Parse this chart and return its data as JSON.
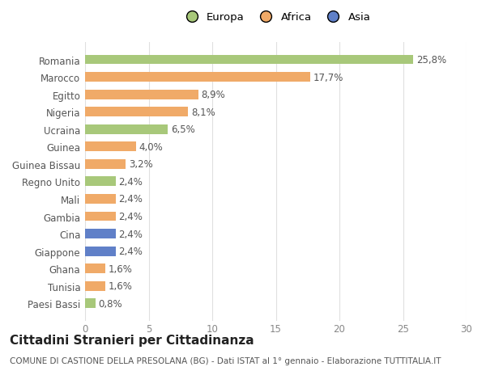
{
  "categories": [
    "Paesi Bassi",
    "Tunisia",
    "Ghana",
    "Giappone",
    "Cina",
    "Gambia",
    "Mali",
    "Regno Unito",
    "Guinea Bissau",
    "Guinea",
    "Ucraina",
    "Nigeria",
    "Egitto",
    "Marocco",
    "Romania"
  ],
  "values": [
    0.8,
    1.6,
    1.6,
    2.4,
    2.4,
    2.4,
    2.4,
    2.4,
    3.2,
    4.0,
    6.5,
    8.1,
    8.9,
    17.7,
    25.8
  ],
  "colors": [
    "#a8c87a",
    "#f0aa68",
    "#f0aa68",
    "#6080c8",
    "#6080c8",
    "#f0aa68",
    "#f0aa68",
    "#a8c87a",
    "#f0aa68",
    "#f0aa68",
    "#a8c87a",
    "#f0aa68",
    "#f0aa68",
    "#f0aa68",
    "#a8c87a"
  ],
  "labels": [
    "0,8%",
    "1,6%",
    "1,6%",
    "2,4%",
    "2,4%",
    "2,4%",
    "2,4%",
    "2,4%",
    "3,2%",
    "4,0%",
    "6,5%",
    "8,1%",
    "8,9%",
    "17,7%",
    "25,8%"
  ],
  "legend": [
    {
      "label": "Europa",
      "color": "#a8c87a"
    },
    {
      "label": "Africa",
      "color": "#f0aa68"
    },
    {
      "label": "Asia",
      "color": "#6080c8"
    }
  ],
  "xlim": [
    0,
    30
  ],
  "xticks": [
    0,
    5,
    10,
    15,
    20,
    25,
    30
  ],
  "title": "Cittadini Stranieri per Cittadinanza",
  "subtitle": "COMUNE DI CASTIONE DELLA PRESOLANA (BG) - Dati ISTAT al 1° gennaio - Elaborazione TUTTITALIA.IT",
  "background_color": "#ffffff",
  "grid_color": "#e0e0e0",
  "bar_height": 0.55,
  "label_fontsize": 8.5,
  "tick_fontsize": 8.5,
  "title_fontsize": 11,
  "subtitle_fontsize": 7.5
}
